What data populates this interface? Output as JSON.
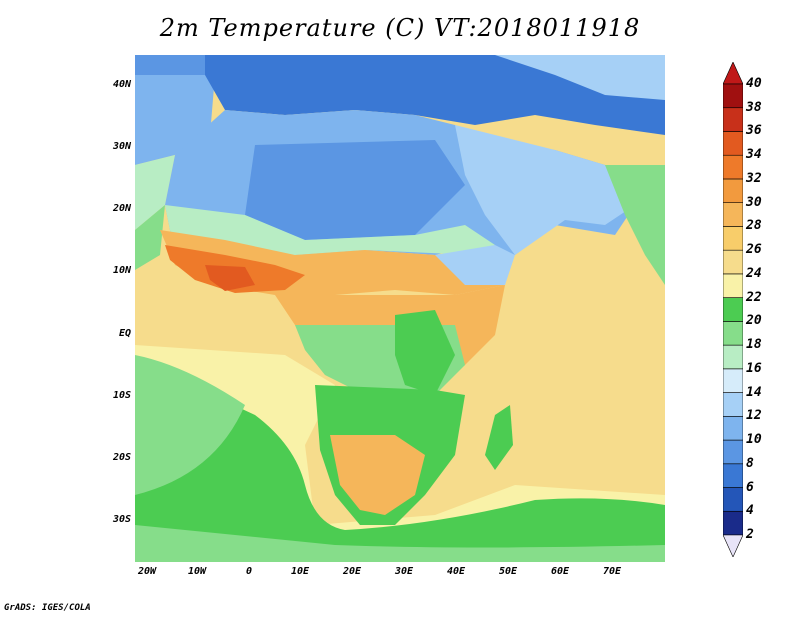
{
  "title": "2m Temperature (C) VT:2018011918",
  "footer": "GrADS: IGES/COLA",
  "map": {
    "lon_range": [
      -22,
      80
    ],
    "lat_range": [
      -37,
      45
    ],
    "lat_ticks": [
      "40N",
      "30N",
      "20N",
      "10N",
      "EQ",
      "10S",
      "20S",
      "30S"
    ],
    "lon_ticks": [
      "20W",
      "10W",
      "0",
      "10E",
      "20E",
      "30E",
      "40E",
      "50E",
      "60E",
      "70E"
    ],
    "ocean_color": "#f6dc8c",
    "land_color": "#f8cd6a"
  },
  "colorbar": {
    "levels": [
      "2",
      "4",
      "6",
      "8",
      "10",
      "12",
      "14",
      "16",
      "18",
      "20",
      "22",
      "24",
      "26",
      "28",
      "30",
      "32",
      "34",
      "36",
      "38",
      "40"
    ],
    "colors": [
      "#e8e4f8",
      "#1a2b8a",
      "#2456b8",
      "#3a78d4",
      "#5b96e3",
      "#7eb4ee",
      "#a6d0f6",
      "#d6ecfa",
      "#b8edc4",
      "#86dd8a",
      "#4ccc52",
      "#f9f2a8",
      "#f6dc8c",
      "#f8cd6a",
      "#f5b65a",
      "#f29a3e",
      "#ee7a2a",
      "#e25a20",
      "#c8301a",
      "#a01010",
      "#c01818"
    ]
  }
}
